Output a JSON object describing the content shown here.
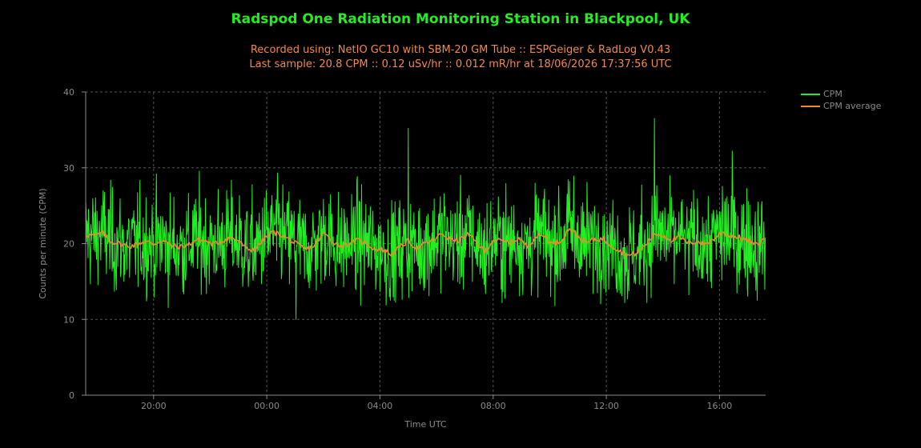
{
  "chart_data": {
    "type": "line",
    "title": "Radspod One Radiation Monitoring Station in Blackpool, UK",
    "subtitle_lines": [
      "Recorded using: NetIO GC10 with SBM-20 GM Tube :: ESPGeiger & RadLog V0.43",
      "Last sample: 20.8 CPM :: 0.12 uSv/hr :: 0.012 mR/hr at 18/06/2026 17:37:56 UTC"
    ],
    "xlabel": "Time UTC",
    "ylabel": "Counts per minute (CPM)",
    "x_range_hours": [
      17.6,
      41.63
    ],
    "xlim": [
      "17/06/2026 17:36 UTC",
      "18/06/2026 17:38 UTC"
    ],
    "x_ticks": [
      {
        "label": "20:00",
        "hour": 20
      },
      {
        "label": "00:00",
        "hour": 24
      },
      {
        "label": "04:00",
        "hour": 28
      },
      {
        "label": "08:00",
        "hour": 32
      },
      {
        "label": "12:00",
        "hour": 36
      },
      {
        "label": "16:00",
        "hour": 40
      }
    ],
    "ylim": [
      0,
      40
    ],
    "y_ticks": [
      0,
      10,
      20,
      30,
      40
    ],
    "grid": true,
    "legend_position": "top-right, outside plot",
    "colors": {
      "background": "#000000",
      "title": "#22ee22",
      "subtitle": "#f08a4a",
      "axis_text": "#8a8a8a",
      "grid": "#555555"
    },
    "series": [
      {
        "name": "CPM",
        "color": "#22ee22",
        "sample_interval_minutes": 1,
        "mean_cpm": 20.2,
        "range_cpm": [
          10,
          36.5
        ],
        "notable_points": [
          {
            "time": "18/06 01:02",
            "hour": 25.03,
            "cpm": 10.0
          },
          {
            "time": "18/06 05:00",
            "hour": 29.0,
            "cpm": 35.2
          },
          {
            "time": "18/06 13:42",
            "hour": 37.7,
            "cpm": 36.5
          },
          {
            "time": "18/06 16:27",
            "hour": 40.45,
            "cpm": 32.2
          },
          {
            "time": "18/06 17:37",
            "hour": 41.63,
            "cpm": 20.8
          }
        ]
      },
      {
        "name": "CPM average",
        "color": "#f08a30",
        "points": [
          [
            17.6,
            21.2
          ],
          [
            17.9,
            21.0
          ],
          [
            18.2,
            21.4
          ],
          [
            18.5,
            20.3
          ],
          [
            18.8,
            20.0
          ],
          [
            19.1,
            19.6
          ],
          [
            19.4,
            19.9
          ],
          [
            19.7,
            20.3
          ],
          [
            20.0,
            19.9
          ],
          [
            20.3,
            20.5
          ],
          [
            20.6,
            19.8
          ],
          [
            20.9,
            19.5
          ],
          [
            21.2,
            19.8
          ],
          [
            21.5,
            20.5
          ],
          [
            21.8,
            20.4
          ],
          [
            22.1,
            19.9
          ],
          [
            22.4,
            20.3
          ],
          [
            22.7,
            20.8
          ],
          [
            23.0,
            20.4
          ],
          [
            23.3,
            19.2
          ],
          [
            23.6,
            19.3
          ],
          [
            23.9,
            20.6
          ],
          [
            24.2,
            21.5
          ],
          [
            24.5,
            21.2
          ],
          [
            24.8,
            20.5
          ],
          [
            25.1,
            19.8
          ],
          [
            25.4,
            19.2
          ],
          [
            25.7,
            19.8
          ],
          [
            26.0,
            21.4
          ],
          [
            26.3,
            20.4
          ],
          [
            26.6,
            19.7
          ],
          [
            26.9,
            20.0
          ],
          [
            27.2,
            20.4
          ],
          [
            27.5,
            20.1
          ],
          [
            27.8,
            19.3
          ],
          [
            28.1,
            19.2
          ],
          [
            28.4,
            18.6
          ],
          [
            28.7,
            19.5
          ],
          [
            29.0,
            20.4
          ],
          [
            29.3,
            19.3
          ],
          [
            29.6,
            20.0
          ],
          [
            29.9,
            20.5
          ],
          [
            30.2,
            21.3
          ],
          [
            30.5,
            20.5
          ],
          [
            30.8,
            20.4
          ],
          [
            31.1,
            21.2
          ],
          [
            31.4,
            20.2
          ],
          [
            31.7,
            18.9
          ],
          [
            32.0,
            20.5
          ],
          [
            32.3,
            20.3
          ],
          [
            32.6,
            20.1
          ],
          [
            32.9,
            20.7
          ],
          [
            33.2,
            19.6
          ],
          [
            33.5,
            20.9
          ],
          [
            33.8,
            21.1
          ],
          [
            34.1,
            19.9
          ],
          [
            34.4,
            20.4
          ],
          [
            34.7,
            22.1
          ],
          [
            35.0,
            20.9
          ],
          [
            35.3,
            20.1
          ],
          [
            35.6,
            20.6
          ],
          [
            35.9,
            20.6
          ],
          [
            36.2,
            19.7
          ],
          [
            36.5,
            19.0
          ],
          [
            36.8,
            18.4
          ],
          [
            37.1,
            18.8
          ],
          [
            37.4,
            19.9
          ],
          [
            37.7,
            21.3
          ],
          [
            38.0,
            21.1
          ],
          [
            38.3,
            20.5
          ],
          [
            38.6,
            20.8
          ],
          [
            38.9,
            20.0
          ],
          [
            39.2,
            20.3
          ],
          [
            39.5,
            19.9
          ],
          [
            39.8,
            20.6
          ],
          [
            40.1,
            21.5
          ],
          [
            40.4,
            21.0
          ],
          [
            40.7,
            20.8
          ],
          [
            41.0,
            20.4
          ],
          [
            41.3,
            19.8
          ],
          [
            41.6,
            20.6
          ]
        ]
      }
    ]
  }
}
